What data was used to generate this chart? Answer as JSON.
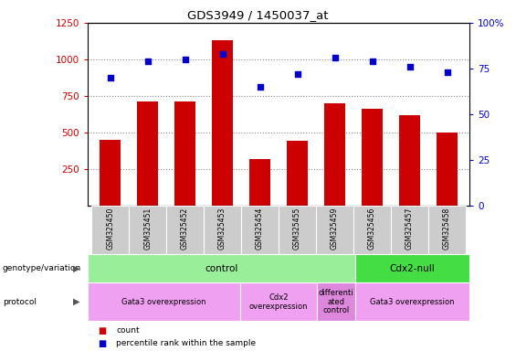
{
  "title": "GDS3949 / 1450037_at",
  "samples": [
    "GSM325450",
    "GSM325451",
    "GSM325452",
    "GSM325453",
    "GSM325454",
    "GSM325455",
    "GSM325459",
    "GSM325456",
    "GSM325457",
    "GSM325458"
  ],
  "counts": [
    450,
    710,
    710,
    1130,
    320,
    440,
    700,
    660,
    620,
    500
  ],
  "percentile": [
    70,
    79,
    80,
    83,
    65,
    72,
    81,
    79,
    76,
    73
  ],
  "ylim_left": [
    0,
    1250
  ],
  "ylim_right": [
    0,
    100
  ],
  "yticks_left": [
    250,
    500,
    750,
    1000,
    1250
  ],
  "yticks_right": [
    0,
    25,
    50,
    75,
    100
  ],
  "bar_color": "#cc0000",
  "dot_color": "#0000cc",
  "dot_size": 25,
  "background_color": "#ffffff",
  "plot_bg": "#ffffff",
  "genotype_row": [
    {
      "label": "control",
      "start": 0,
      "end": 7,
      "color": "#99ee99"
    },
    {
      "label": "Cdx2-null",
      "start": 7,
      "end": 10,
      "color": "#44dd44"
    }
  ],
  "protocol_row": [
    {
      "label": "Gata3 overexpression",
      "start": 0,
      "end": 4,
      "color": "#f0a0f0"
    },
    {
      "label": "Cdx2\noverexpression",
      "start": 4,
      "end": 6,
      "color": "#f0a0f0"
    },
    {
      "label": "differenti\nated\ncontrol",
      "start": 6,
      "end": 7,
      "color": "#dd88dd"
    },
    {
      "label": "Gata3 overexpression",
      "start": 7,
      "end": 10,
      "color": "#f0a0f0"
    }
  ],
  "legend_count_color": "#cc0000",
  "legend_dot_color": "#0000cc",
  "left_label_color": "#cc0000",
  "right_label_color": "#0000cc",
  "xlabels_bg": "#cccccc",
  "xlabels_line_color": "#ffffff"
}
